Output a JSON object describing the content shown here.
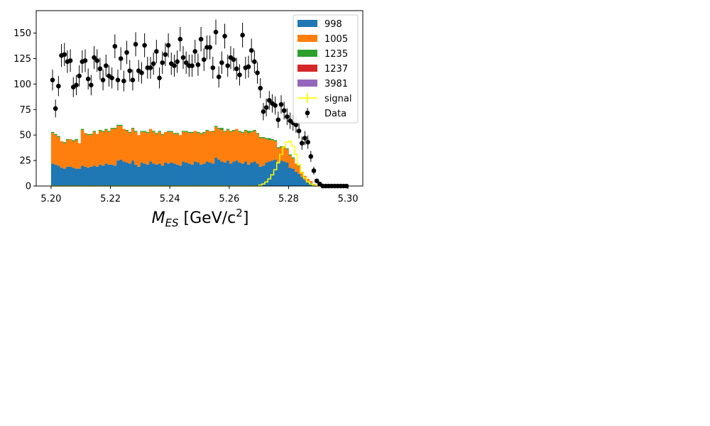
{
  "chart_data": {
    "type": "bar",
    "xlabel_parts": {
      "symbol": "M",
      "subscript": "ES",
      "unit_prefix": " [GeV/c",
      "unit_sup": "2",
      "unit_suffix": "]"
    },
    "xlim": [
      5.195,
      5.305
    ],
    "ylim": [
      0,
      172
    ],
    "x_ticks": [
      "5.20",
      "5.22",
      "5.24",
      "5.26",
      "5.28",
      "5.30"
    ],
    "y_ticks": [
      "0",
      "25",
      "50",
      "75",
      "100",
      "125",
      "150"
    ],
    "bins": {
      "start": 5.2,
      "end": 5.3,
      "count": 100
    },
    "legend_position": "upper right",
    "legend": [
      {
        "label": "998",
        "color": "#1f77b4",
        "kind": "patch"
      },
      {
        "label": "1005",
        "color": "#ff7f0e",
        "kind": "patch"
      },
      {
        "label": "1235",
        "color": "#2ca02c",
        "kind": "patch"
      },
      {
        "label": "1237",
        "color": "#d62728",
        "kind": "patch"
      },
      {
        "label": "3981",
        "color": "#9467bd",
        "kind": "patch"
      },
      {
        "label": "signal",
        "color": "#ffff00",
        "kind": "line"
      },
      {
        "label": "Data",
        "color": "#000000",
        "kind": "errorbar"
      }
    ],
    "series": [
      {
        "name": "998",
        "color": "#1f77b4",
        "values": [
          22,
          21,
          20,
          18,
          17,
          19,
          19,
          18,
          17,
          17,
          20,
          19,
          18,
          19,
          20,
          19,
          21,
          20,
          22,
          21,
          21,
          20,
          25,
          26,
          24,
          23,
          22,
          25,
          21,
          19,
          23,
          22,
          21,
          24,
          22,
          21,
          22,
          20,
          23,
          22,
          23,
          22,
          21,
          20,
          24,
          23,
          22,
          21,
          24,
          23,
          21,
          22,
          24,
          23,
          22,
          28,
          26,
          24,
          23,
          25,
          22,
          24,
          25,
          23,
          22,
          24,
          21,
          23,
          24,
          22,
          19,
          20,
          23,
          24,
          25,
          26,
          22,
          25,
          24,
          23,
          18,
          17,
          14,
          12,
          9,
          6,
          4,
          3,
          1,
          0,
          0,
          0,
          0,
          0,
          0,
          0,
          0,
          0,
          0,
          0
        ]
      },
      {
        "name": "1005",
        "color": "#ff7f0e",
        "values": [
          30,
          29,
          28,
          26,
          25,
          26,
          27,
          26,
          28,
          25,
          35,
          33,
          32,
          31,
          33,
          32,
          33,
          33,
          33,
          32,
          35,
          36,
          34,
          33,
          32,
          31,
          30,
          31,
          32,
          31,
          30,
          31,
          31,
          32,
          31,
          30,
          31,
          30,
          30,
          31,
          30,
          29,
          30,
          30,
          29,
          30,
          30,
          31,
          30,
          29,
          30,
          30,
          30,
          31,
          31,
          30,
          30,
          31,
          30,
          30,
          31,
          30,
          31,
          30,
          30,
          30,
          31,
          30,
          30,
          29,
          28,
          27,
          23,
          21,
          20,
          18,
          15,
          13,
          14,
          13,
          12,
          10,
          8,
          7,
          5,
          4,
          3,
          2,
          1,
          0,
          0,
          0,
          0,
          0,
          0,
          0,
          0,
          0,
          0,
          0
        ]
      },
      {
        "name": "1235",
        "color": "#2ca02c",
        "values": [
          1,
          1,
          1,
          0,
          1,
          1,
          0,
          1,
          1,
          0,
          1,
          0,
          1,
          1,
          1,
          0,
          1,
          1,
          1,
          1,
          1,
          1,
          1,
          1,
          0,
          1,
          1,
          1,
          1,
          0,
          1,
          1,
          1,
          0,
          1,
          1,
          1,
          1,
          0,
          1,
          1,
          1,
          1,
          0,
          1,
          1,
          1,
          1,
          0,
          1,
          1,
          1,
          1,
          0,
          1,
          1,
          1,
          2,
          1,
          1,
          1,
          1,
          0,
          1,
          1,
          1,
          2,
          1,
          1,
          1,
          1,
          1,
          1,
          2,
          1,
          1,
          1,
          1,
          1,
          1,
          1,
          1,
          0,
          1,
          0,
          0,
          0,
          0,
          0,
          0,
          0,
          0,
          0,
          0,
          0,
          0,
          0,
          0,
          0,
          0
        ]
      },
      {
        "name": "1237",
        "color": "#d62728",
        "values": [
          0,
          0,
          0,
          0,
          0,
          0,
          0,
          0,
          0,
          0,
          0,
          0,
          0,
          0,
          0,
          0,
          0,
          0,
          0,
          0,
          0,
          0,
          0,
          0,
          0,
          0,
          0,
          0,
          0,
          0,
          0,
          0,
          0,
          0,
          0,
          0,
          0,
          0,
          0,
          0,
          0,
          0,
          0,
          0,
          0,
          0,
          0,
          0,
          0,
          0,
          0,
          0,
          0,
          0,
          0,
          0,
          0,
          0,
          0,
          0,
          0,
          0,
          0,
          0,
          0,
          0,
          0,
          0,
          0,
          0,
          0,
          0,
          0,
          0,
          0,
          0,
          0,
          0,
          0,
          0,
          0,
          0,
          0,
          0,
          0,
          0,
          0,
          0,
          0,
          0,
          0,
          0,
          0,
          0,
          0,
          0,
          0,
          0,
          0,
          0
        ]
      },
      {
        "name": "3981",
        "color": "#9467bd",
        "values": [
          0,
          0,
          0,
          0,
          0,
          0,
          0,
          0,
          0,
          0,
          0,
          0,
          0,
          0,
          0,
          0,
          0,
          0,
          0,
          0,
          0,
          0,
          0,
          0,
          0,
          0,
          0,
          0,
          0,
          0,
          0,
          0,
          0,
          0,
          0,
          0,
          0,
          0,
          0,
          0,
          0,
          0,
          0,
          0,
          0,
          0,
          0,
          0,
          0,
          0,
          0,
          0,
          0,
          0,
          0,
          0,
          0,
          0,
          0,
          0,
          0,
          0,
          0,
          0,
          0,
          0,
          0,
          0,
          0,
          0,
          0,
          0,
          0,
          0,
          0,
          0,
          0,
          0,
          0,
          0,
          0,
          0,
          0,
          0,
          0,
          0,
          0,
          0,
          0,
          0,
          0,
          0,
          0,
          0,
          0,
          0,
          0,
          0,
          0,
          0
        ]
      }
    ],
    "signal": {
      "name": "signal",
      "color": "#ffff00",
      "values": [
        0,
        0,
        0,
        0,
        0,
        0,
        0,
        0,
        0,
        0,
        0,
        0,
        0,
        0,
        0,
        0,
        0,
        0,
        0,
        0,
        0,
        0,
        0,
        0,
        0,
        0,
        0,
        0,
        0,
        0,
        0,
        0,
        0,
        0,
        0,
        0,
        0,
        0,
        0,
        0,
        0,
        0,
        0,
        0,
        0,
        0,
        0,
        0,
        0,
        0,
        0,
        0,
        0,
        0,
        0,
        0,
        0,
        0,
        0,
        0,
        0,
        0,
        0,
        0,
        0,
        0,
        0,
        0,
        0,
        0,
        1,
        2,
        4,
        7,
        11,
        16,
        23,
        31,
        38,
        43,
        44,
        39,
        31,
        21,
        13,
        8,
        4,
        2,
        1,
        0,
        0,
        0,
        0,
        0,
        0,
        0,
        0,
        0,
        0,
        0
      ]
    },
    "data_points": {
      "name": "Data",
      "color": "#000000",
      "x": [
        5.2005,
        5.2015,
        5.2025,
        5.2035,
        5.2045,
        5.2055,
        5.2065,
        5.2075,
        5.2085,
        5.2095,
        5.2105,
        5.2115,
        5.2125,
        5.2135,
        5.2145,
        5.2155,
        5.2165,
        5.2175,
        5.2185,
        5.2195,
        5.2205,
        5.2215,
        5.2225,
        5.2235,
        5.2245,
        5.2255,
        5.2265,
        5.2275,
        5.2285,
        5.2295,
        5.2305,
        5.2315,
        5.2325,
        5.2335,
        5.2345,
        5.2355,
        5.2365,
        5.2375,
        5.2385,
        5.2395,
        5.2405,
        5.2415,
        5.2425,
        5.2435,
        5.2445,
        5.2455,
        5.2465,
        5.2475,
        5.2485,
        5.2495,
        5.2505,
        5.2515,
        5.2525,
        5.2535,
        5.2545,
        5.2555,
        5.2565,
        5.2575,
        5.2585,
        5.2595,
        5.2605,
        5.2615,
        5.2625,
        5.2635,
        5.2645,
        5.2655,
        5.2665,
        5.2675,
        5.2685,
        5.2695,
        5.2705,
        5.2715,
        5.2725,
        5.2735,
        5.2745,
        5.2755,
        5.2765,
        5.2775,
        5.2785,
        5.2795,
        5.2805,
        5.2815,
        5.2825,
        5.2835,
        5.2845,
        5.2855,
        5.2865,
        5.2875,
        5.2885,
        5.2895,
        5.2905,
        5.2915,
        5.2925,
        5.2935,
        5.2945,
        5.2955,
        5.2965,
        5.2975,
        5.2985,
        5.2995
      ],
      "y": [
        104,
        76,
        98,
        128,
        129,
        122,
        123,
        97,
        99,
        108,
        122,
        123,
        105,
        99,
        126,
        123,
        115,
        104,
        118,
        108,
        106,
        137,
        104,
        125,
        103,
        131,
        113,
        104,
        139,
        113,
        111,
        138,
        116,
        116,
        120,
        132,
        106,
        121,
        129,
        138,
        120,
        118,
        122,
        144,
        126,
        121,
        118,
        118,
        132,
        119,
        144,
        124,
        136,
        136,
        116,
        151,
        107,
        121,
        147,
        118,
        126,
        124,
        115,
        109,
        148,
        116,
        117,
        133,
        122,
        111,
        96,
        73,
        77,
        84,
        81,
        79,
        65,
        80,
        74,
        68,
        64,
        62,
        60,
        54,
        42,
        47,
        43,
        29,
        15,
        5,
        2,
        0,
        0,
        0,
        0,
        0,
        0,
        0,
        0,
        0
      ]
    }
  }
}
